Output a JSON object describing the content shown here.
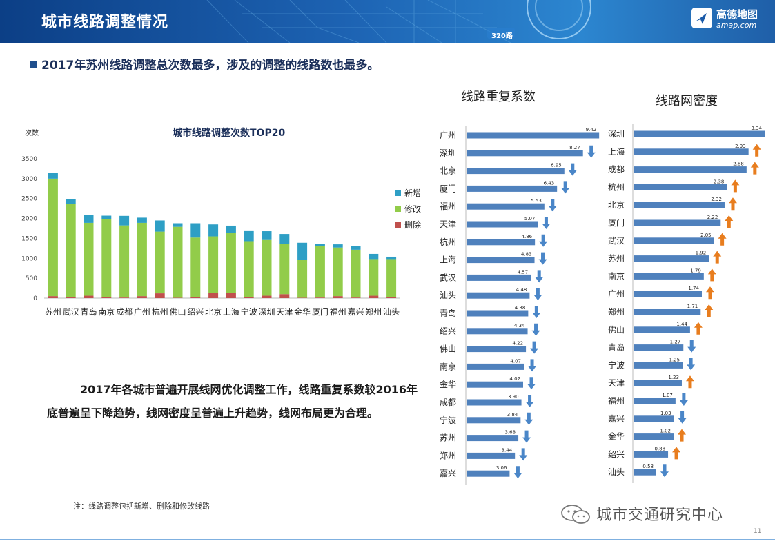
{
  "header": {
    "title": "城市线路调整情况",
    "route_tag": "320路",
    "logo_name": "高德地图",
    "logo_url": "amap.com"
  },
  "headline": "2017年苏州线路调整总次数最多，涉及的调整的线路数也最多。",
  "body_text": "2017年各城市普遍开展线网优化调整工作，线路重复系数较2016年底普遍呈下降趋势，线网密度呈普遍上升趋势，线网布局更为合理。",
  "footnote": "注：线路调整包括新增、删除和修改线路",
  "wechat_text": "城市交通研究中心",
  "page_number": "11",
  "colors": {
    "new": "#2e9fc5",
    "modify": "#92cc4a",
    "delete": "#c0504d",
    "bar": "#4f81bd",
    "arrow_down": "#4a86c8",
    "arrow_up": "#e87d1e",
    "header": "#1a5aa8"
  },
  "chart_data": [
    {
      "type": "bar",
      "stacked": true,
      "title": "城市线路调整次数TOP20",
      "ylabel": "次数",
      "ylim": [
        0,
        3500
      ],
      "yticks": [
        0,
        500,
        1000,
        1500,
        2000,
        2500,
        3000,
        3500
      ],
      "legend_position": "right",
      "categories": [
        "苏州",
        "武汉",
        "青岛",
        "南京",
        "成都",
        "广州",
        "杭州",
        "佛山",
        "绍兴",
        "北京",
        "上海",
        "宁波",
        "深圳",
        "天津",
        "金华",
        "厦门",
        "福州",
        "嘉兴",
        "郑州",
        "汕头"
      ],
      "series": [
        {
          "name": "删除",
          "values": [
            50,
            30,
            60,
            20,
            15,
            50,
            120,
            10,
            20,
            130,
            130,
            20,
            60,
            100,
            10,
            15,
            50,
            15,
            60,
            20
          ]
        },
        {
          "name": "修改",
          "values": [
            2950,
            2330,
            1830,
            1960,
            1810,
            1840,
            1550,
            1780,
            1500,
            1420,
            1500,
            1410,
            1400,
            1260,
            960,
            1290,
            1220,
            1200,
            920,
            960
          ]
        },
        {
          "name": "新增",
          "values": [
            150,
            130,
            190,
            90,
            240,
            130,
            280,
            90,
            360,
            300,
            190,
            270,
            220,
            250,
            420,
            50,
            80,
            90,
            130,
            60
          ]
        }
      ]
    },
    {
      "type": "bar",
      "orientation": "horizontal",
      "title": "线路重复系数",
      "categories": [
        "广州",
        "深圳",
        "北京",
        "厦门",
        "福州",
        "天津",
        "杭州",
        "上海",
        "武汉",
        "汕头",
        "青岛",
        "绍兴",
        "佛山",
        "南京",
        "金华",
        "成都",
        "宁波",
        "苏州",
        "郑州",
        "嘉兴"
      ],
      "values": [
        9.42,
        8.27,
        6.95,
        6.43,
        5.53,
        5.07,
        4.86,
        4.83,
        4.57,
        4.48,
        4.38,
        4.34,
        4.22,
        4.07,
        4.02,
        3.9,
        3.84,
        3.68,
        3.44,
        3.06
      ],
      "labels": [
        "9.42",
        "8.27",
        "6.95",
        "6.43",
        "5.53",
        "5.07",
        "4.86",
        "4.83",
        "4.57",
        "4.48",
        "4.38",
        "4.34",
        "4.22",
        "4.07",
        "4.02",
        "3.90",
        "3.84",
        "3.68",
        "3.44",
        "3.06"
      ],
      "trend": [
        "down",
        "down",
        "down",
        "down",
        "down",
        "down",
        "down",
        "down",
        "down",
        "down",
        "down",
        "down",
        "down",
        "down",
        "down",
        "down",
        "down",
        "down",
        "down",
        "down"
      ]
    },
    {
      "type": "bar",
      "orientation": "horizontal",
      "title": "线路网密度",
      "categories": [
        "深圳",
        "上海",
        "成都",
        "杭州",
        "北京",
        "厦门",
        "武汉",
        "苏州",
        "南京",
        "广州",
        "郑州",
        "佛山",
        "青岛",
        "宁波",
        "天津",
        "福州",
        "嘉兴",
        "金华",
        "绍兴",
        "汕头"
      ],
      "values": [
        3.34,
        2.93,
        2.88,
        2.38,
        2.32,
        2.22,
        2.05,
        1.92,
        1.79,
        1.74,
        1.71,
        1.44,
        1.27,
        1.25,
        1.23,
        1.07,
        1.03,
        1.02,
        0.88,
        0.58
      ],
      "labels": [
        "3.34",
        "2.93",
        "2.88",
        "2.38",
        "2.32",
        "2.22",
        "2.05",
        "1.92",
        "1.79",
        "1.74",
        "1.71",
        "1.44",
        "1.27",
        "1.25",
        "1.23",
        "1.07",
        "1.03",
        "1.02",
        "0.88",
        "0.58"
      ],
      "trend": [
        "up",
        "up",
        "up",
        "up",
        "up",
        "up",
        "up",
        "up",
        "up",
        "up",
        "up",
        "up",
        "down",
        "down",
        "up",
        "down",
        "down",
        "up",
        "up",
        "down"
      ]
    }
  ]
}
